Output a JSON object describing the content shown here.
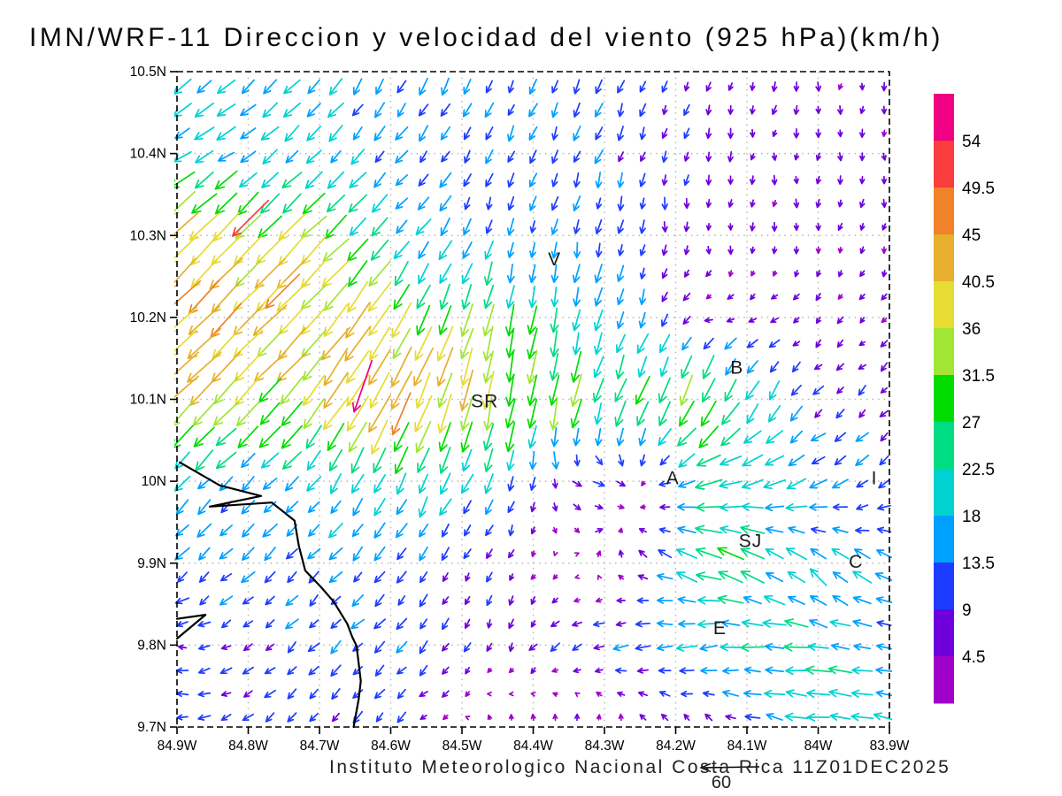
{
  "chart_data": {
    "type": "quiver",
    "title": "IMN/WRF-11 Direccion y velocidad del viento (925 hPa)(km/h)",
    "footer": "Instituto Meteorologico Nacional Costa Rica  11Z01DEC2025",
    "model": "IMN/WRF-11",
    "level": "925 hPa",
    "units": "km/h",
    "valid_time": "11Z01DEC2025",
    "x_axis": {
      "tick_labels": [
        "84.9W",
        "84.8W",
        "84.7W",
        "84.6W",
        "84.5W",
        "84.4W",
        "84.3W",
        "84.2W",
        "84.1W",
        "84W",
        "83.9W"
      ],
      "tick_lons": [
        84.9,
        84.8,
        84.7,
        84.6,
        84.5,
        84.4,
        84.3,
        84.2,
        84.1,
        84.0,
        83.9
      ],
      "range_west_to_east": [
        84.9,
        83.9
      ]
    },
    "y_axis": {
      "tick_labels": [
        "10.5N",
        "10.4N",
        "10.3N",
        "10.2N",
        "10.1N",
        "10N",
        "9.9N",
        "9.8N",
        "9.7N"
      ],
      "tick_lats": [
        10.5,
        10.4,
        10.3,
        10.2,
        10.1,
        10.0,
        9.9,
        9.8,
        9.7
      ],
      "range_south_to_north": [
        9.7,
        10.5
      ]
    },
    "grid": {
      "on": true,
      "color": "#b8b8b8",
      "style": "dotted"
    },
    "colorbar": {
      "levels": [
        4.5,
        9,
        13.5,
        18,
        22.5,
        27,
        31.5,
        36,
        40.5,
        45,
        49.5,
        54
      ],
      "labels": [
        "4.5",
        "9",
        "13.5",
        "18",
        "22.5",
        "27",
        "31.5",
        "36",
        "40.5",
        "45",
        "49.5",
        "54"
      ],
      "colors_low_to_high": [
        "#A000C8",
        "#6E00DC",
        "#1E3CFF",
        "#00A0FF",
        "#00D2D2",
        "#00DC82",
        "#00DC00",
        "#A0E632",
        "#E6DC32",
        "#E6AF2D",
        "#F08228",
        "#FA3C3C",
        "#F00082"
      ],
      "position": "right"
    },
    "reference_arrow": {
      "value": 60,
      "label": "60"
    },
    "stations": [
      {
        "label": "V",
        "lon": 84.37,
        "lat": 10.271
      },
      {
        "label": "B",
        "lon": 84.114,
        "lat": 10.139
      },
      {
        "label": "SR",
        "lon": 84.468,
        "lat": 10.098
      },
      {
        "label": "A",
        "lon": 84.204,
        "lat": 10.004
      },
      {
        "label": "SJ",
        "lon": 84.095,
        "lat": 9.927
      },
      {
        "label": "C",
        "lon": 83.947,
        "lat": 9.902
      },
      {
        "label": "E",
        "lon": 84.138,
        "lat": 9.821
      },
      {
        "label": "I",
        "lon": 83.921,
        "lat": 10.004
      }
    ],
    "coastlines": [
      [
        [
          84.896,
          10.023
        ],
        [
          84.84,
          9.995
        ],
        [
          84.782,
          9.982
        ],
        [
          84.854,
          9.969
        ],
        [
          84.767,
          9.974
        ],
        [
          84.735,
          9.952
        ],
        [
          84.729,
          9.921
        ],
        [
          84.72,
          9.891
        ],
        [
          84.698,
          9.871
        ],
        [
          84.68,
          9.853
        ],
        [
          84.661,
          9.826
        ],
        [
          84.654,
          9.81
        ],
        [
          84.648,
          9.799
        ],
        [
          84.642,
          9.756
        ],
        [
          84.645,
          9.734
        ],
        [
          84.652,
          9.7
        ]
      ],
      [
        [
          84.9,
          9.832
        ],
        [
          84.86,
          9.837
        ],
        [
          84.9,
          9.808
        ]
      ]
    ],
    "wind_grid": {
      "comment": "u=eastward, v=northward wind components (km/h) at control points; rows = lats north to south, cols = lons west to east",
      "lons": [
        84.9,
        84.75,
        84.6,
        84.45,
        84.3,
        84.15,
        84.0,
        83.9
      ],
      "lats": [
        10.5,
        10.4,
        10.3,
        10.2,
        10.1,
        10.0,
        9.9,
        9.8,
        9.7
      ],
      "u": [
        [
          -14,
          -14,
          -6,
          -5,
          -5,
          -1.5,
          -1,
          0
        ],
        [
          -18,
          -13,
          -10,
          -5,
          -4,
          -1,
          -0.5,
          0
        ],
        [
          -30,
          -25,
          -14,
          -3,
          -2,
          1,
          -1,
          -1
        ],
        [
          -31,
          -30,
          -18,
          -6,
          -4,
          -6,
          -3.5,
          -3.5
        ],
        [
          -28,
          -24,
          -20,
          -6,
          -10,
          -14,
          -7,
          -6
        ],
        [
          -13,
          -11,
          -10,
          -8,
          12,
          -24,
          -15,
          -9
        ],
        [
          -10,
          -10,
          -8.5,
          -3,
          1,
          -24,
          -14,
          -16
        ],
        [
          -8,
          -8,
          -9,
          -2,
          -11,
          -19,
          -21,
          -15
        ],
        [
          -10,
          -8,
          -8,
          0,
          1,
          -5,
          -21,
          -17
        ]
      ],
      "v": [
        [
          -14,
          -14,
          -14,
          -12,
          -11,
          -7,
          -6,
          -5
        ],
        [
          -8,
          -13,
          -10,
          -12,
          -11,
          -7,
          -5.5,
          -5
        ],
        [
          -30,
          -25,
          -14,
          -13,
          -12,
          -6,
          -5,
          -5
        ],
        [
          -31,
          -30,
          -31,
          -27,
          -19,
          -1,
          -3.5,
          -3.5
        ],
        [
          -28,
          -24,
          -41,
          -37,
          -26,
          -29,
          -7,
          -6
        ],
        [
          -13,
          -11,
          -22,
          -16,
          -2,
          -5,
          -8,
          -9
        ],
        [
          -10,
          -10,
          -8.5,
          -7,
          4,
          9,
          14,
          7
        ],
        [
          0,
          -8,
          -9,
          -7,
          -4,
          -3,
          3,
          2
        ],
        [
          1,
          -8,
          -8,
          5,
          5,
          5,
          2,
          3
        ]
      ]
    },
    "extra_arrows": [
      {
        "lon": 84.639,
        "lat": 10.116,
        "u": -18,
        "v": -52
      },
      {
        "lon": 84.797,
        "lat": 10.321,
        "u": -36,
        "v": -36
      },
      {
        "lon": 84.752,
        "lat": 10.232,
        "u": -34,
        "v": -34
      }
    ],
    "arrow_density": {
      "cols": 33,
      "rows": 28
    }
  }
}
